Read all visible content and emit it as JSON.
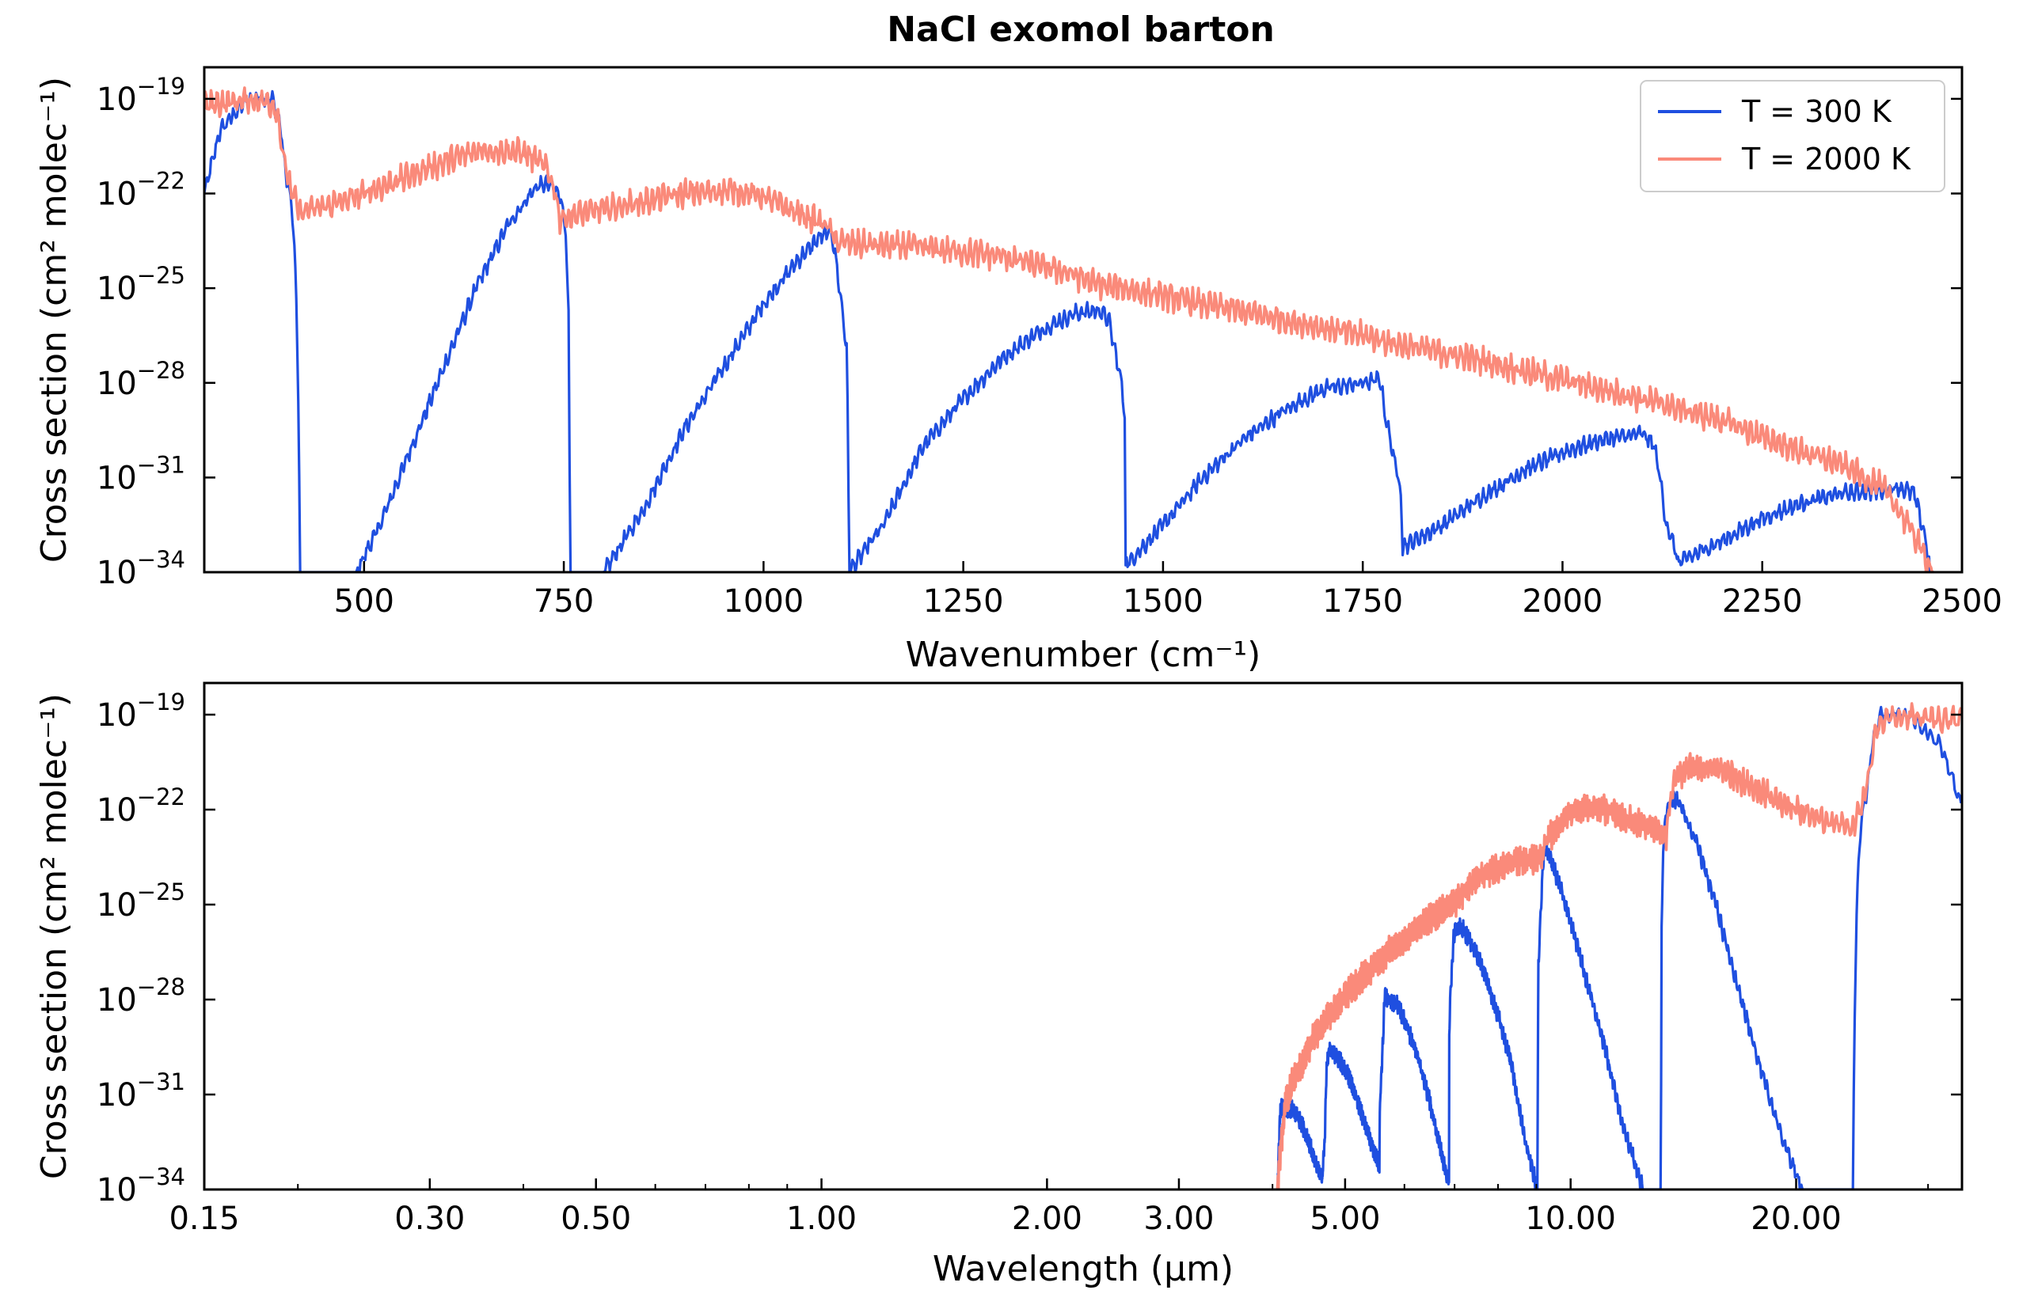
{
  "chart_data": [
    {
      "type": "line",
      "title": "NaCl exomol barton",
      "xlabel": "Wavenumber (cm⁻¹)",
      "ylabel": "Cross section (cm² molec⁻¹)",
      "xscale": "linear",
      "yscale": "log",
      "xlim": [
        300,
        2500
      ],
      "ylim": [
        1e-34,
        1e-18
      ],
      "x_ticks": [
        500,
        750,
        1000,
        1250,
        1500,
        1750,
        2000,
        2250,
        2500
      ],
      "y_ticks": [
        1e-34,
        1e-31,
        1e-28,
        1e-25,
        1e-22,
        1e-19
      ],
      "y_tick_labels": [
        {
          "base": "10",
          "exp": "−34"
        },
        {
          "base": "10",
          "exp": "−31"
        },
        {
          "base": "10",
          "exp": "−28"
        },
        {
          "base": "10",
          "exp": "−25"
        },
        {
          "base": "10",
          "exp": "−22"
        },
        {
          "base": "10",
          "exp": "−19"
        }
      ],
      "legend_position": "upper-right",
      "grid": false,
      "series": [
        {
          "name": "T = 300 K",
          "color": "#1f4fe0",
          "x": [
            300,
            320,
            350,
            370,
            385,
            395,
            400,
            410,
            415,
            418,
            420,
            490,
            520,
            560,
            600,
            640,
            680,
            715,
            728,
            735,
            745,
            752,
            756,
            758,
            800,
            850,
            900,
            950,
            1000,
            1040,
            1070,
            1085,
            1090,
            1100,
            1104,
            1106,
            1107,
            1150,
            1200,
            1250,
            1300,
            1350,
            1390,
            1420,
            1432,
            1440,
            1448,
            1452,
            1453,
            1500,
            1550,
            1600,
            1650,
            1700,
            1750,
            1772,
            1778,
            1790,
            1798,
            1800,
            1850,
            1900,
            1950,
            2000,
            2050,
            2100,
            2115,
            2122,
            2130,
            2140,
            2145,
            2200,
            2250,
            2300,
            2350,
            2400,
            2420,
            2440,
            2455,
            2460,
            2465
          ],
          "y": [
            -22.0,
            -20.0,
            -19.1,
            -18.9,
            -19.0,
            -19.8,
            -21.0,
            -22.5,
            -25.0,
            -29.0,
            -34.0,
            -34.0,
            -32.5,
            -30.0,
            -27.5,
            -25.0,
            -23.0,
            -21.8,
            -21.7,
            -21.8,
            -22.0,
            -23.0,
            -26.0,
            -34.0,
            -34.0,
            -32.0,
            -29.5,
            -27.5,
            -25.5,
            -24.2,
            -23.4,
            -23.2,
            -24.0,
            -26.0,
            -27.0,
            -30.0,
            -34.0,
            -32.5,
            -30.0,
            -28.5,
            -27.2,
            -26.3,
            -25.8,
            -25.7,
            -26.0,
            -27.0,
            -28.0,
            -29.0,
            -33.8,
            -32.5,
            -31.0,
            -29.8,
            -28.9,
            -28.2,
            -28.0,
            -27.9,
            -29.0,
            -30.5,
            -31.5,
            -33.2,
            -32.5,
            -31.6,
            -30.8,
            -30.2,
            -29.8,
            -29.6,
            -30.0,
            -31.0,
            -32.5,
            -33.2,
            -33.7,
            -33.0,
            -32.3,
            -31.8,
            -31.5,
            -31.4,
            -31.3,
            -31.5,
            -33.0,
            -34.0,
            -34.0
          ]
        },
        {
          "name": "T = 2000 K",
          "color": "#fa8a7a",
          "x": [
            300,
            330,
            360,
            380,
            390,
            395,
            400,
            410,
            420,
            480,
            550,
            600,
            650,
            700,
            720,
            730,
            740,
            745,
            760,
            820,
            900,
            960,
            1000,
            1040,
            1080,
            1090,
            1110,
            1200,
            1300,
            1380,
            1400,
            1420,
            1450,
            1550,
            1650,
            1750,
            1800,
            1900,
            2000,
            2100,
            2200,
            2280,
            2350,
            2400,
            2420,
            2440,
            2455,
            2465
          ],
          "y": [
            -19.2,
            -19.1,
            -19.05,
            -19.1,
            -19.3,
            -20.0,
            -21.0,
            -22.0,
            -22.6,
            -22.2,
            -21.5,
            -21.0,
            -20.6,
            -20.7,
            -21.0,
            -21.3,
            -22.0,
            -22.8,
            -22.7,
            -22.4,
            -22.0,
            -21.9,
            -22.1,
            -22.6,
            -23.0,
            -23.5,
            -23.6,
            -23.7,
            -24.0,
            -24.5,
            -24.7,
            -24.9,
            -25.0,
            -25.5,
            -26.0,
            -26.5,
            -26.8,
            -27.3,
            -27.9,
            -28.5,
            -29.2,
            -30.0,
            -30.6,
            -31.3,
            -32.0,
            -32.8,
            -33.6,
            -34.0
          ]
        }
      ]
    },
    {
      "type": "line",
      "xlabel": "Wavelength (µm)",
      "ylabel": "Cross section (cm² molec⁻¹)",
      "xscale": "log",
      "yscale": "log",
      "xlim": [
        0.15,
        33.3
      ],
      "ylim": [
        1e-34,
        1e-18
      ],
      "x_ticks": [
        0.15,
        0.3,
        0.5,
        1.0,
        2.0,
        3.0,
        5.0,
        10.0,
        20.0
      ],
      "x_tick_labels": [
        "0.15",
        "0.30",
        "0.50",
        "1.00",
        "2.00",
        "3.00",
        "5.00",
        "10.00",
        "20.00"
      ],
      "y_ticks": [
        1e-34,
        1e-31,
        1e-28,
        1e-25,
        1e-22,
        1e-19
      ],
      "y_tick_labels": [
        {
          "base": "10",
          "exp": "−34"
        },
        {
          "base": "10",
          "exp": "−31"
        },
        {
          "base": "10",
          "exp": "−28"
        },
        {
          "base": "10",
          "exp": "−25"
        },
        {
          "base": "10",
          "exp": "−22"
        },
        {
          "base": "10",
          "exp": "−19"
        }
      ],
      "grid": false,
      "series": [
        {
          "name": "T = 300 K",
          "color": "#1f4fe0"
        },
        {
          "name": "T = 2000 K",
          "color": "#fa8a7a"
        }
      ]
    }
  ]
}
